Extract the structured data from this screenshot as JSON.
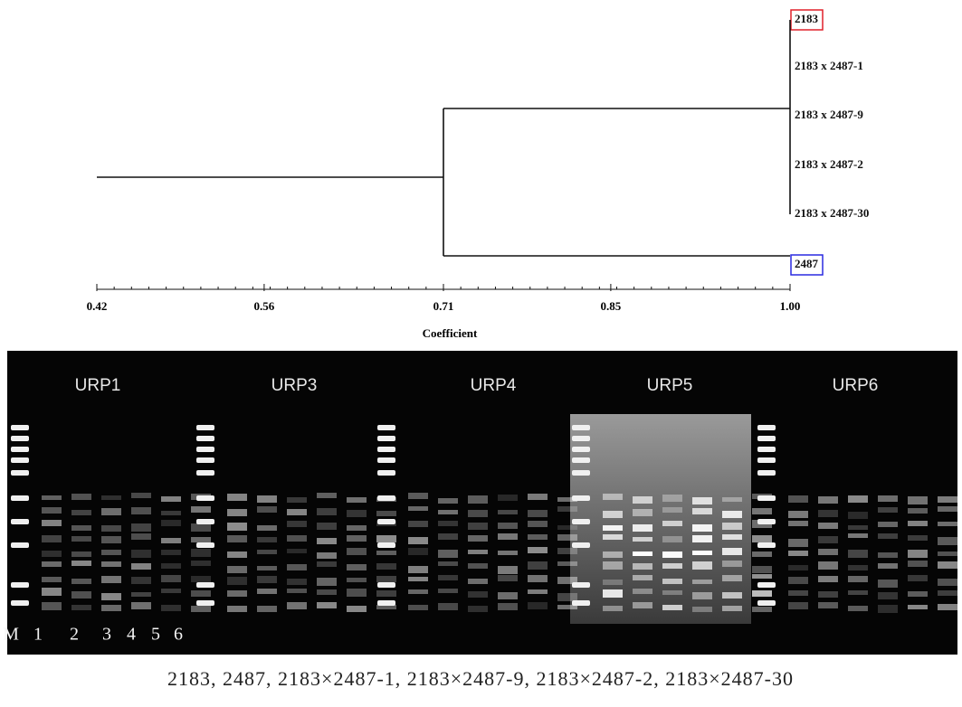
{
  "chart_data": {
    "type": "dendrogram",
    "x_label": "Coefficient",
    "leaves": [
      {
        "label": "2183",
        "box_color": "#e0202a"
      },
      {
        "label": "2183 x 2487-1"
      },
      {
        "label": "2183 x 2487-9"
      },
      {
        "label": "2183 x 2487-2"
      },
      {
        "label": "2183 x 2487-30"
      },
      {
        "label": "2487",
        "box_color": "#2a2ae0"
      }
    ],
    "merges": [
      {
        "height": {
          "value": 1,
          "label": "1.00"
        }
      },
      {
        "height": 0.71
      }
    ],
    "xlim": [
      0.42,
      1
    ],
    "xticks": [
      0.42,
      0.56,
      0.71,
      0.85,
      {
        "value": 1,
        "label": "1.00"
      }
    ]
  },
  "gel": {
    "panels": [
      "URP1",
      "URP3",
      "URP4",
      "URP5",
      "URP6"
    ],
    "lanes": [
      "M",
      "1",
      "2",
      "3",
      "4",
      "5",
      "6"
    ]
  },
  "caption": "2183, 2487, 2183×2487-1, 2183×2487-9, 2183×2487-2, 2183×2487-30"
}
